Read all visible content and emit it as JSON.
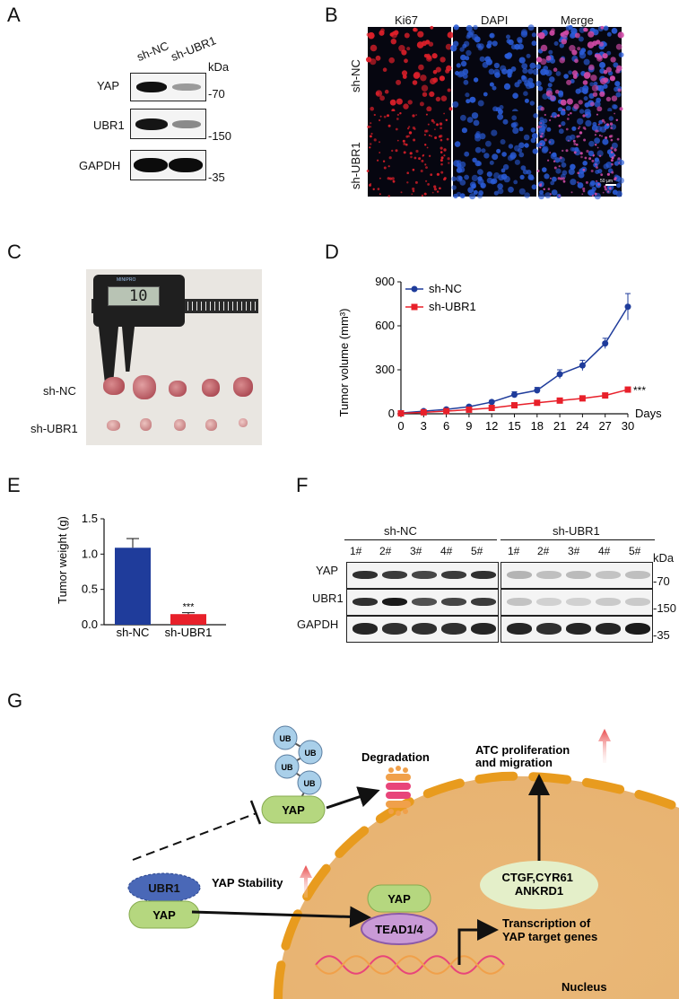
{
  "panel_labels": {
    "a": "A",
    "b": "B",
    "c": "C",
    "d": "D",
    "e": "E",
    "f": "F",
    "g": "G"
  },
  "panelA": {
    "lanes": [
      "sh-NC",
      "sh-UBR1"
    ],
    "unit": "kDa",
    "rows": [
      {
        "label": "YAP",
        "mw": "-70"
      },
      {
        "label": "UBR1",
        "mw": "-150"
      },
      {
        "label": "GAPDH",
        "mw": "-35"
      }
    ]
  },
  "panelB": {
    "columns": [
      "Ki67",
      "DAPI",
      "Merge"
    ],
    "rows": [
      "sh-NC",
      "sh-UBR1"
    ],
    "scale": "50 µm",
    "colors": {
      "ki67": "#e0202a",
      "dapi": "#2a5cd8",
      "bg": "#060610"
    }
  },
  "panelC": {
    "rows": [
      "sh-NC",
      "sh-UBR1"
    ],
    "caliper": {
      "brand": "MINIPRO",
      "readout": "10"
    }
  },
  "panelD": {
    "x_unit": "Days",
    "significance": "***",
    "chart_data": {
      "type": "line",
      "ylabel": "Tumor volume (mm³)",
      "xlabel": "Days",
      "x": [
        0,
        3,
        6,
        9,
        12,
        15,
        18,
        21,
        24,
        27,
        30
      ],
      "xlim": [
        0,
        30
      ],
      "ylim": [
        0,
        900
      ],
      "yticks": [
        0,
        300,
        600,
        900
      ],
      "xticks": [
        0,
        3,
        6,
        9,
        12,
        15,
        18,
        21,
        24,
        27,
        30
      ],
      "legend": "top-left",
      "series": [
        {
          "name": "sh-NC",
          "color": "#1f3c9b",
          "marker": "circle",
          "values": [
            5,
            18,
            30,
            48,
            80,
            130,
            160,
            270,
            330,
            480,
            730
          ],
          "err": [
            2,
            5,
            6,
            8,
            12,
            20,
            20,
            30,
            35,
            35,
            90
          ]
        },
        {
          "name": "sh-UBR1",
          "color": "#e8202a",
          "marker": "square",
          "values": [
            3,
            10,
            18,
            28,
            40,
            58,
            75,
            90,
            105,
            125,
            165
          ],
          "err": [
            1,
            3,
            4,
            5,
            6,
            8,
            9,
            10,
            10,
            12,
            15
          ]
        }
      ]
    }
  },
  "panelE": {
    "significance": "***",
    "chart_data": {
      "type": "bar",
      "ylabel": "Tumor weight (g)",
      "categories": [
        "sh-NC",
        "sh-UBR1"
      ],
      "values": [
        1.09,
        0.15
      ],
      "err": [
        0.13,
        0.02
      ],
      "ylim": [
        0,
        1.5
      ],
      "yticks": [
        "0.0",
        "0.5",
        "1.0",
        "1.5"
      ],
      "colors": [
        "#1f3c9b",
        "#e8202a"
      ]
    }
  },
  "panelF": {
    "groups": [
      "sh-NC",
      "sh-UBR1"
    ],
    "lanes": [
      "1#",
      "2#",
      "3#",
      "4#",
      "5#",
      "1#",
      "2#",
      "3#",
      "4#",
      "5#"
    ],
    "unit": "kDa",
    "rows": [
      {
        "label": "YAP",
        "mw": "-70"
      },
      {
        "label": "UBR1",
        "mw": "-150"
      },
      {
        "label": "GAPDH",
        "mw": "-35"
      }
    ]
  },
  "panelG": {
    "ub": [
      "UB",
      "UB",
      "UB",
      "UB"
    ],
    "yap_top": "YAP",
    "degradation": "Degradation",
    "outcome": "ATC proliferation\nand migration",
    "target_genes": "CTGF,CYR61\nANKRD1",
    "ubr1": "UBR1",
    "yap_left": "YAP",
    "stability": "YAP Stability",
    "yap_nucleus": "YAP",
    "tead": "TEAD1/4",
    "transcription": "Transcription of\nYAP target genes",
    "nucleus": "Nucleus",
    "colors": {
      "yap": "#b5d77f",
      "ubr1": "#4a68b7",
      "tead": "#c99ad6",
      "ub": "#a9cfe9",
      "nucleus": "#e9b87a",
      "membrane": "#e89b1e",
      "genes": "#e4efc9"
    }
  }
}
